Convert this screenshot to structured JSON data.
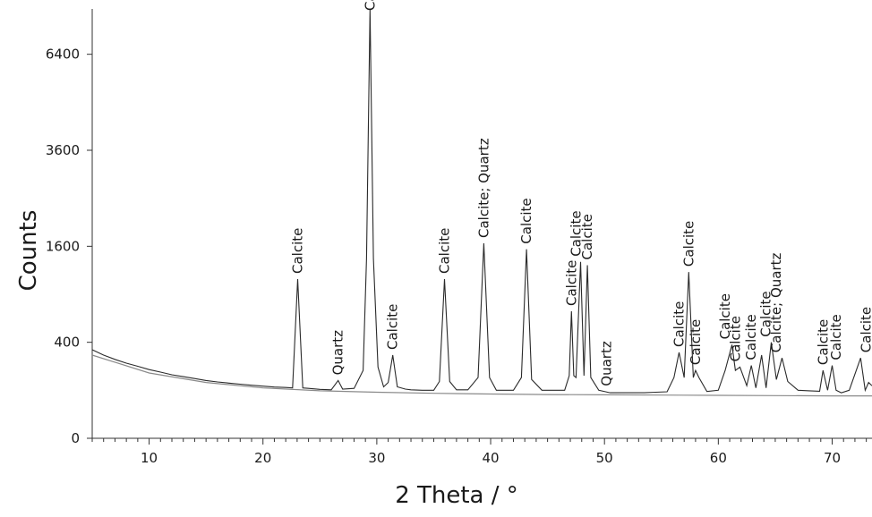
{
  "chart_data": {
    "type": "line",
    "title": "",
    "xlabel": "2 Theta / °",
    "ylabel": "Counts",
    "x_scale": "linear",
    "y_scale": "sqrt",
    "xlim": [
      5,
      73.5
    ],
    "ylim": [
      0,
      8000
    ],
    "x_ticks": [
      10,
      20,
      30,
      40,
      50,
      60,
      70
    ],
    "y_ticks": [
      0,
      400,
      1600,
      3600,
      6400
    ],
    "grid": false,
    "legend": "none",
    "line_color": "#2a2a2a",
    "background_color": "#8a8a8a",
    "series": [
      {
        "role": "pattern",
        "x": [
          5,
          6,
          7,
          8,
          9,
          10,
          11,
          12,
          13,
          14,
          15,
          16,
          17,
          18,
          19,
          20,
          21,
          22,
          22.6,
          23.05,
          23.5,
          24,
          25,
          26,
          26.6,
          27,
          28,
          28.8,
          29.1,
          29.4,
          29.7,
          30.1,
          30.6,
          31.0,
          31.4,
          31.8,
          32.5,
          33,
          34,
          35,
          35.5,
          35.95,
          36.4,
          37,
          38,
          38.9,
          39.4,
          39.9,
          40.5,
          41,
          42,
          42.7,
          43.15,
          43.6,
          44.5,
          45.5,
          46.5,
          46.9,
          47.1,
          47.3,
          47.5,
          47.9,
          48.2,
          48.5,
          48.8,
          49.5,
          50.5,
          51.5,
          52.5,
          53.5,
          54.5,
          55.5,
          56.1,
          56.55,
          57.0,
          57.4,
          57.8,
          58.0,
          58.3,
          59,
          60,
          60.6,
          61.2,
          61.5,
          61.9,
          62.5,
          62.9,
          63.3,
          63.8,
          64.2,
          64.65,
          65.1,
          65.6,
          66.1,
          67,
          68,
          68.9,
          69.2,
          69.6,
          70.0,
          70.35,
          70.8,
          71.5,
          72.5,
          72.9,
          73.2,
          73.5
        ],
        "y": [
          340,
          300,
          270,
          245,
          225,
          205,
          190,
          175,
          165,
          155,
          145,
          138,
          132,
          127,
          122,
          118,
          114,
          112,
          110,
          1100,
          110,
          108,
          104,
          102,
          145,
          105,
          108,
          200,
          1400,
          8000,
          1400,
          220,
          115,
          135,
          300,
          115,
          105,
          102,
          100,
          100,
          140,
          1100,
          140,
          102,
          102,
          160,
          1650,
          160,
          100,
          100,
          100,
          160,
          1550,
          150,
          100,
          100,
          100,
          170,
          700,
          170,
          160,
          1350,
          170,
          1300,
          160,
          100,
          90,
          90,
          90,
          90,
          92,
          94,
          160,
          320,
          160,
          1200,
          160,
          200,
          160,
          95,
          100,
          200,
          380,
          200,
          220,
          120,
          230,
          110,
          300,
          110,
          400,
          150,
          280,
          140,
          100,
          98,
          96,
          200,
          100,
          230,
          100,
          90,
          100,
          280,
          100,
          135,
          120
        ]
      },
      {
        "role": "background",
        "x": [
          5,
          10,
          15,
          20,
          25,
          30,
          35,
          40,
          45,
          50,
          55,
          60,
          65,
          70,
          73.5
        ],
        "y": [
          300,
          185,
          135,
          110,
          98,
          92,
          88,
          85,
          83,
          82,
          81,
          80,
          79,
          78,
          78
        ]
      }
    ],
    "annotations": [
      {
        "text": "Calcite",
        "x": 23.05,
        "y": 1100
      },
      {
        "text": "Quartz",
        "x": 26.6,
        "y": 145
      },
      {
        "text": "Calcite",
        "x": 29.4,
        "y": 8000
      },
      {
        "text": "Calcite",
        "x": 31.4,
        "y": 300
      },
      {
        "text": "Calcite",
        "x": 35.95,
        "y": 1100
      },
      {
        "text": "Calcite; Quartz",
        "x": 39.4,
        "y": 1650
      },
      {
        "text": "Calcite",
        "x": 43.15,
        "y": 1550
      },
      {
        "text": "Calcite",
        "x": 47.1,
        "y": 700
      },
      {
        "text": "Calcite",
        "x": 47.5,
        "y": 1350
      },
      {
        "text": "Calcite",
        "x": 48.5,
        "y": 1300
      },
      {
        "text": "Quartz",
        "x": 50.2,
        "y": 95
      },
      {
        "text": "Calcite",
        "x": 56.55,
        "y": 320
      },
      {
        "text": "Calcite",
        "x": 57.4,
        "y": 1200
      },
      {
        "text": "Calcite",
        "x": 58.0,
        "y": 200
      },
      {
        "text": "Calcite",
        "x": 60.6,
        "y": 380
      },
      {
        "text": "Calcite",
        "x": 61.5,
        "y": 220
      },
      {
        "text": "Calcite",
        "x": 62.9,
        "y": 230
      },
      {
        "text": "Calcite",
        "x": 64.2,
        "y": 400
      },
      {
        "text": "Calcite; Quartz",
        "x": 65.1,
        "y": 280
      },
      {
        "text": "Calcite",
        "x": 69.2,
        "y": 200
      },
      {
        "text": "Calcite",
        "x": 70.35,
        "y": 230
      },
      {
        "text": "Calcite",
        "x": 73.0,
        "y": 280
      },
      {
        "text": "Calcite",
        "x": 74.0,
        "y": 150
      }
    ]
  }
}
